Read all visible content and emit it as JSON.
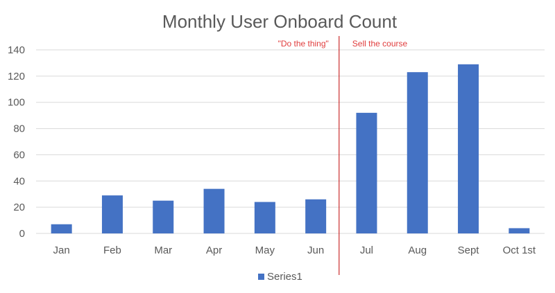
{
  "chart_data": {
    "type": "bar",
    "title": "Monthly User Onboard Count",
    "categories": [
      "Jan",
      "Feb",
      "Mar",
      "Apr",
      "May",
      "Jun",
      "Jul",
      "Aug",
      "Sept",
      "Oct 1st"
    ],
    "series": [
      {
        "name": "Series1",
        "values": [
          7,
          29,
          25,
          34,
          24,
          26,
          92,
          123,
          129,
          4
        ]
      }
    ],
    "ylim": [
      0,
      140
    ],
    "yticks": [
      0,
      20,
      40,
      60,
      80,
      100,
      120,
      140
    ],
    "grid": true,
    "legend_position": "bottom",
    "divider_after_category": "Jun",
    "annotations": [
      {
        "text": "\"Do the thing\"",
        "side": "left-of-divider"
      },
      {
        "text": "Sell the course",
        "side": "right-of-divider"
      }
    ],
    "colors": {
      "bar": "#4472C4",
      "divider": "#C00000",
      "annotation": "#E03C3C",
      "grid": "#D9D9D9",
      "text": "#595959"
    }
  }
}
